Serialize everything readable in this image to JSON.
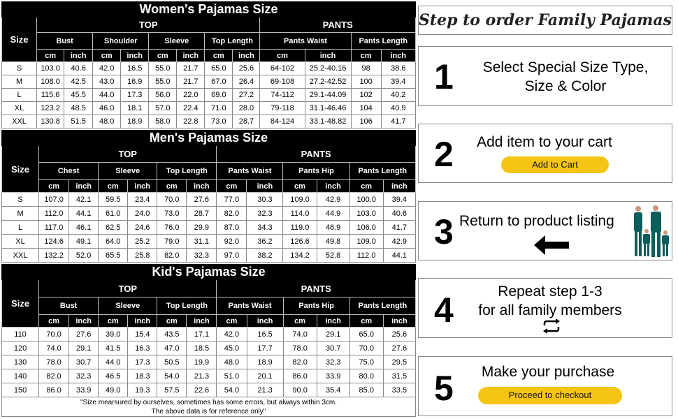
{
  "women": {
    "title": "Women's Pajamas Size",
    "size_label": "Size",
    "top_label": "TOP",
    "pants_label": "PANTS",
    "top_groups": [
      "Bust",
      "Shoulder",
      "Sleeve",
      "Top Length"
    ],
    "pants_groups": [
      "Pants Waist",
      "Pants Length"
    ],
    "unit_cm": "cm",
    "unit_inch": "inch",
    "rows": [
      [
        "S",
        "103.0",
        "40.6",
        "42.0",
        "16.5",
        "55.0",
        "21.7",
        "65.0",
        "25.6",
        "64-102",
        "25.2-40.16",
        "98",
        "38.6"
      ],
      [
        "M",
        "108.0",
        "42.5",
        "43.0",
        "16.9",
        "55.0",
        "21.7",
        "67.0",
        "26.4",
        "69-108",
        "27.2-42.52",
        "100",
        "39.4"
      ],
      [
        "L",
        "115.6",
        "45.5",
        "44.0",
        "17.3",
        "56.0",
        "22.0",
        "69.0",
        "27.2",
        "74-112",
        "29.1-44.09",
        "102",
        "40.2"
      ],
      [
        "XL",
        "123.2",
        "48.5",
        "46.0",
        "18.1",
        "57.0",
        "22.4",
        "71.0",
        "28.0",
        "79-118",
        "31.1-46.46",
        "104",
        "40.9"
      ],
      [
        "XXL",
        "130.8",
        "51.5",
        "48.0",
        "18.9",
        "58.0",
        "22.8",
        "73.0",
        "28.7",
        "84-124",
        "33.1-48.82",
        "106",
        "41.7"
      ]
    ]
  },
  "men": {
    "title": "Men's Pajamas Size",
    "size_label": "Size",
    "top_label": "TOP",
    "pants_label": "PANTS",
    "top_groups": [
      "Chest",
      "Sleeve",
      "Top Length"
    ],
    "pants_groups": [
      "Pants Waist",
      "Pants Hip",
      "Pants Length"
    ],
    "unit_cm": "cm",
    "unit_inch": "inch",
    "rows": [
      [
        "S",
        "107.0",
        "42.1",
        "59.5",
        "23.4",
        "70.0",
        "27.6",
        "77.0",
        "30.3",
        "109.0",
        "42.9",
        "100.0",
        "39.4"
      ],
      [
        "M",
        "112.0",
        "44.1",
        "61.0",
        "24.0",
        "73.0",
        "28.7",
        "82.0",
        "32.3",
        "114.0",
        "44.9",
        "103.0",
        "40.6"
      ],
      [
        "L",
        "117.0",
        "46.1",
        "62.5",
        "24.6",
        "76.0",
        "29.9",
        "87.0",
        "34.3",
        "119.0",
        "46.9",
        "106.0",
        "41.7"
      ],
      [
        "XL",
        "124.6",
        "49.1",
        "64.0",
        "25.2",
        "79.0",
        "31.1",
        "92.0",
        "36.2",
        "126.6",
        "49.8",
        "109.0",
        "42.9"
      ],
      [
        "XXL",
        "132.2",
        "52.0",
        "65.5",
        "25.8",
        "82.0",
        "32.3",
        "97.0",
        "38.2",
        "134.2",
        "52.8",
        "112.0",
        "44.1"
      ]
    ]
  },
  "kids": {
    "title": "Kid's Pajamas Size",
    "size_label": "Size",
    "top_label": "TOP",
    "pants_label": "PANTS",
    "top_groups": [
      "Bust",
      "Sleeve",
      "Top Length"
    ],
    "pants_groups": [
      "Pants Waist",
      "Pants Hip",
      "Pants Length"
    ],
    "unit_cm": "cm",
    "unit_inch": "inch",
    "rows": [
      [
        "110",
        "70.0",
        "27.6",
        "39.0",
        "15.4",
        "43.5",
        "17.1",
        "42.0",
        "16.5",
        "74.0",
        "29.1",
        "65.0",
        "25.6"
      ],
      [
        "120",
        "74.0",
        "29.1",
        "41.5",
        "16.3",
        "47.0",
        "18.5",
        "45.0",
        "17.7",
        "78.0",
        "30.7",
        "70.0",
        "27.6"
      ],
      [
        "130",
        "78.0",
        "30.7",
        "44.0",
        "17.3",
        "50.5",
        "19.9",
        "48.0",
        "18.9",
        "82.0",
        "32.3",
        "75.0",
        "29.5"
      ],
      [
        "140",
        "82.0",
        "32.3",
        "46.5",
        "18.3",
        "54.0",
        "21.3",
        "51.0",
        "20.1",
        "86.0",
        "33.9",
        "80.0",
        "31.5"
      ],
      [
        "150",
        "86.0",
        "33.9",
        "49.0",
        "19.3",
        "57.5",
        "22.6",
        "54.0",
        "21.3",
        "90.0",
        "35.4",
        "85.0",
        "33.5"
      ]
    ],
    "note_line1": "\"Size mearsured by ourselves, sometimes has some errors, but always within 3cm.",
    "note_line2": "The above data is for reference only\""
  },
  "steps_panel": {
    "title": "Step to order Family Pajamas",
    "steps": [
      {
        "number": "1",
        "line1": "Select Special Size Type,",
        "line2": "Size & Color"
      },
      {
        "number": "2",
        "line1": "Add item to your cart",
        "button": "Add to Cart"
      },
      {
        "number": "3",
        "line1": "Return to product listing",
        "icon": "arrow-left-icon"
      },
      {
        "number": "4",
        "line1": "Repeat step 1-3",
        "line2": "for all family members",
        "icon": "repeat-icon"
      },
      {
        "number": "5",
        "line1": "Make your purchase",
        "button": "Proceed to checkout"
      }
    ]
  },
  "colors": {
    "header_bg": "#000000",
    "button": "#f6c414",
    "pajama": "#0d5d5b"
  }
}
